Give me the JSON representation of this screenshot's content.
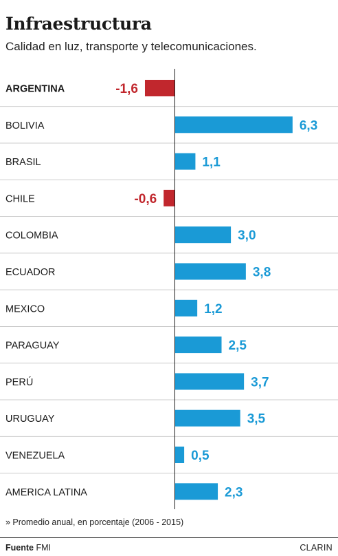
{
  "header": {
    "title": "Infraestructura",
    "subtitle": "Calidad en luz, transporte y telecomunicaciones."
  },
  "chart_data": {
    "type": "bar",
    "orientation": "horizontal",
    "categories": [
      "ARGENTINA",
      "BOLIVIA",
      "BRASIL",
      "CHILE",
      "COLOMBIA",
      "ECUADOR",
      "MEXICO",
      "PARAGUAY",
      "PERÚ",
      "URUGUAY",
      "VENEZUELA",
      "AMERICA LATINA"
    ],
    "values": [
      -1.6,
      6.3,
      1.1,
      -0.6,
      3.0,
      3.8,
      1.2,
      2.5,
      3.7,
      3.5,
      0.5,
      2.3
    ],
    "value_labels": [
      "-1,6",
      "6,3",
      "1,1",
      "-0,6",
      "3,0",
      "3,8",
      "1,2",
      "2,5",
      "3,7",
      "3,5",
      "0,5",
      "2,3"
    ],
    "highlighted": "ARGENTINA",
    "colors": {
      "positive": "#1a9ad6",
      "negative": "#c1272d",
      "text": "#1a1a1a",
      "separator": "#cccccc"
    },
    "xlim": [
      -1.6,
      6.3
    ]
  },
  "footer": {
    "note": "» Promedio anual, en porcentaje (2006 - 2015)",
    "source_label": "Fuente",
    "source": "FMI",
    "brand": "CLARIN"
  }
}
